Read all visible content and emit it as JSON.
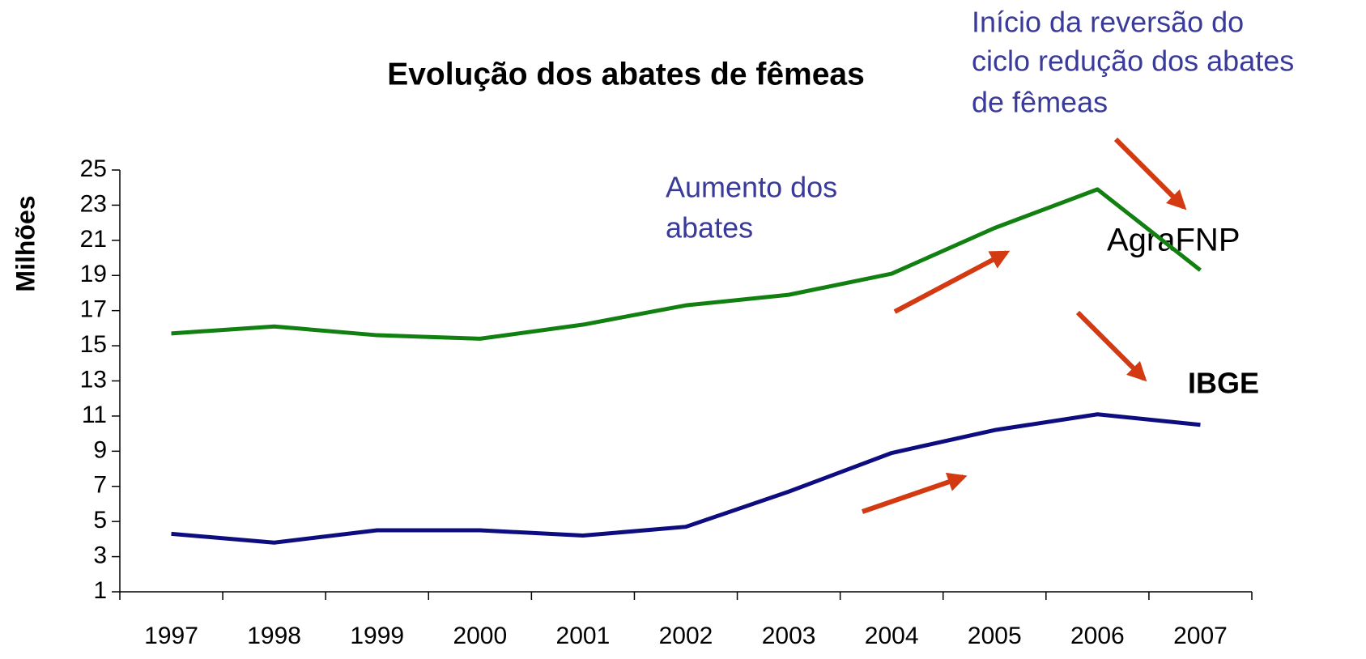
{
  "chart_data": {
    "type": "line",
    "title": "Evolução dos abates de fêmeas",
    "y_label": "Milhões",
    "categories": [
      "1997",
      "1998",
      "1999",
      "2000",
      "2001",
      "2002",
      "2003",
      "2004",
      "2005",
      "2006",
      "2007"
    ],
    "series": [
      {
        "name": "AgraFNP",
        "color": "#118011",
        "values": [
          15.7,
          16.1,
          15.6,
          15.4,
          16.2,
          17.3,
          17.9,
          19.1,
          21.7,
          23.9,
          19.3
        ]
      },
      {
        "name": "IBGE",
        "color": "#0d0d80",
        "values": [
          4.3,
          3.8,
          4.5,
          4.5,
          4.2,
          4.7,
          6.7,
          8.9,
          10.2,
          11.1,
          10.5
        ]
      }
    ],
    "ylim": [
      1,
      25
    ],
    "yticks": [
      1,
      3,
      5,
      7,
      9,
      11,
      13,
      15,
      17,
      19,
      21,
      23,
      25
    ],
    "annotations": [
      {
        "lines": [
          "Início da reversão do",
          "ciclo redução dos abates",
          "de fêmeas"
        ]
      },
      {
        "lines": [
          "Aumento dos",
          "abates"
        ]
      }
    ]
  }
}
